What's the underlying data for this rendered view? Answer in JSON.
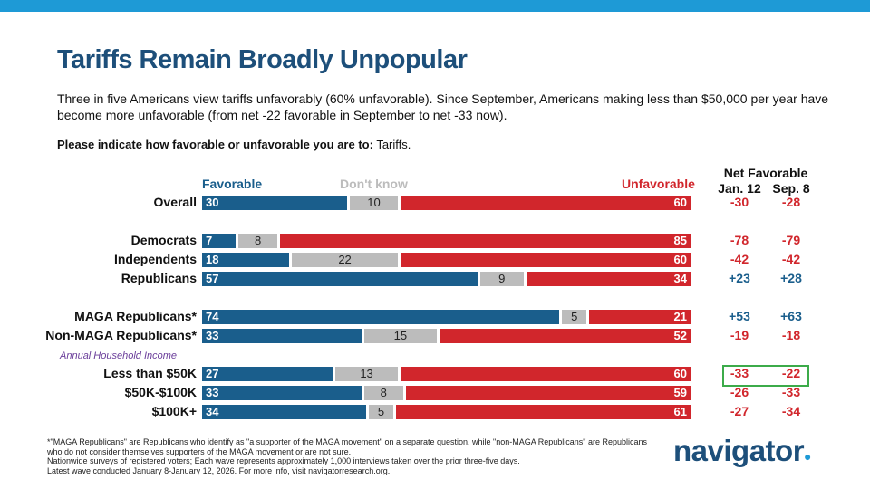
{
  "title": "Tariffs Remain Broadly Unpopular",
  "subtitle": "Three in five Americans view tariffs unfavorably (60% unfavorable). Since September, Americans making less than $50,000 per year have become more unfavorable (from net -22 favorable in September to net -33 now).",
  "question_bold": "Please indicate how favorable or unfavorable you are to:",
  "question_rest": " Tariffs.",
  "colors": {
    "favorable": "#1a5e8c",
    "dont_know": "#bcbcbc",
    "unfavorable": "#d1262c",
    "net_negative": "#d1262c",
    "net_positive": "#1a5e8c",
    "highlight": "#3cab4a"
  },
  "chart_data": {
    "type": "bar",
    "stacked": true,
    "legend": [
      "Favorable",
      "Don't know",
      "Unfavorable"
    ],
    "net_header": "Net Favorable",
    "net_columns": [
      "Jan. 12",
      "Sep. 8"
    ],
    "section_label": "Annual Household Income",
    "rows": [
      {
        "label": "Overall",
        "favorable": 30,
        "dont_know": 10,
        "unfavorable": 60,
        "net_jan": "-30",
        "net_sep": "-28"
      },
      {
        "label": "Democrats",
        "favorable": 7,
        "dont_know": 8,
        "unfavorable": 85,
        "net_jan": "-78",
        "net_sep": "-79"
      },
      {
        "label": "Independents",
        "favorable": 18,
        "dont_know": 22,
        "unfavorable": 60,
        "net_jan": "-42",
        "net_sep": "-42"
      },
      {
        "label": "Republicans",
        "favorable": 57,
        "dont_know": 9,
        "unfavorable": 34,
        "net_jan": "+23",
        "net_sep": "+28"
      },
      {
        "label": "MAGA Republicans*",
        "favorable": 74,
        "dont_know": 5,
        "unfavorable": 21,
        "net_jan": "+53",
        "net_sep": "+63"
      },
      {
        "label": "Non-MAGA Republicans*",
        "favorable": 33,
        "dont_know": 15,
        "unfavorable": 52,
        "net_jan": "-19",
        "net_sep": "-18"
      },
      {
        "label": "Less than $50K",
        "favorable": 27,
        "dont_know": 13,
        "unfavorable": 60,
        "net_jan": "-33",
        "net_sep": "-22"
      },
      {
        "label": "$50K-$100K",
        "favorable": 33,
        "dont_know": 8,
        "unfavorable": 59,
        "net_jan": "-26",
        "net_sep": "-33"
      },
      {
        "label": "$100K+",
        "favorable": 34,
        "dont_know": 5,
        "unfavorable": 61,
        "net_jan": "-27",
        "net_sep": "-34"
      }
    ]
  },
  "footnotes": [
    "*\"MAGA Republicans\" are Republicans who identify as \"a supporter of the MAGA movement\" on a separate question, while \"non-MAGA Republicans\" are Republicans who do not consider themselves supporters of the MAGA movement or are not sure.",
    "Nationwide surveys of registered voters; Each wave represents approximately 1,000 interviews taken over the prior three-five days.",
    "Latest wave conducted January 8-January 12, 2026. For more info, visit navigatorresearch.org."
  ],
  "logo": "navigator"
}
